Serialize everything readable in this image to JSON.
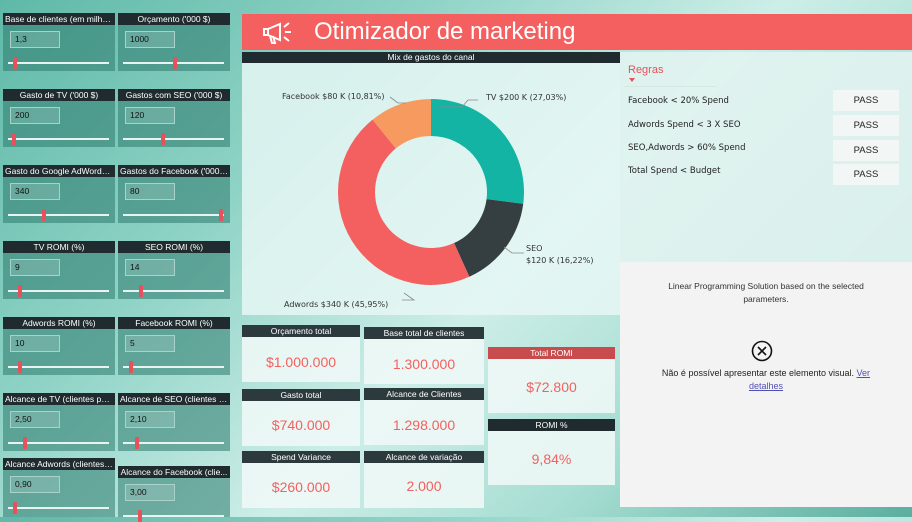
{
  "slicers": [
    {
      "title": "Base de clientes (em milhõ...",
      "value": "1,3"
    },
    {
      "title": "Orçamento ('000 $)",
      "value": "1000"
    },
    {
      "title": "Gasto de TV ('000 $)",
      "value": "200"
    },
    {
      "title": "Gastos com SEO ('000 $)",
      "value": "120"
    },
    {
      "title": "Gasto do Google AdWords...",
      "value": "340"
    },
    {
      "title": "Gastos do Facebook ('000 $)",
      "value": "80"
    },
    {
      "title": "TV ROMI (%)",
      "value": "9"
    },
    {
      "title": "SEO ROMI (%)",
      "value": "14"
    },
    {
      "title": "Adwords ROMI (%)",
      "value": "10"
    },
    {
      "title": "Facebook ROMI (%)",
      "value": "5"
    },
    {
      "title": "Alcance de TV (clientes po...",
      "value": "2,50"
    },
    {
      "title": "Alcance de SEO (clientes p...",
      "value": "2,10"
    },
    {
      "title": "Alcance Adwords (clientes ...",
      "value": "0,90"
    },
    {
      "title": "Alcance do Facebook (clie...",
      "value": "3,00"
    }
  ],
  "header": {
    "title": "Otimizador de marketing",
    "icon": "megaphone-icon"
  },
  "chart_data": {
    "type": "pie",
    "title": "Mix de gastos do canal",
    "slices": [
      {
        "name": "TV",
        "label": "TV $200 K (27,03%)",
        "value": 200,
        "color": "#14b4a4"
      },
      {
        "name": "SEO",
        "label_line1": "SEO",
        "label_line2": "$120 K (16,22%)",
        "value": 120,
        "color": "#353f42"
      },
      {
        "name": "Adwords",
        "label": "Adwords $340 K (45,95%)",
        "value": 340,
        "color": "#f4605f"
      },
      {
        "name": "Facebook",
        "label": "Facebook $80 K (10,81%)",
        "value": 80,
        "color": "#f79a60"
      }
    ]
  },
  "rules": {
    "title": "Regras",
    "items": [
      {
        "label": "Facebook < 20% Spend",
        "status": "PASS"
      },
      {
        "label": "Adwords Spend < 3 X SEO",
        "status": "PASS"
      },
      {
        "label": "SEO,Adwords > 60% Spend",
        "status": "PASS"
      },
      {
        "label": "Total Spend < Budget",
        "status": "PASS"
      }
    ]
  },
  "error_visual": {
    "top_text": "Linear Programming Solution based on the selected parameters.",
    "message": "Não é possível apresentar este elemento visual.",
    "link": "Ver detalhes",
    "icon": "close-circle-icon"
  },
  "cards": {
    "budget": {
      "label": "Orçamento total",
      "value": "$1.000.000"
    },
    "customers": {
      "label": "Base total de clientes",
      "value": "1.300.000"
    },
    "spent": {
      "label": "Gasto total",
      "value": "$740.000"
    },
    "reach": {
      "label": "Alcance de Clientes",
      "value": "1.298.000"
    },
    "variance": {
      "label": "Spend Variance",
      "value": "$260.000"
    },
    "reach_var": {
      "label": "Alcance de variação",
      "value": "2.000"
    },
    "romi": {
      "label": "Total ROMI",
      "value": "$72.800"
    },
    "romi_pct": {
      "label": "ROMI %",
      "value": "9,84%"
    }
  },
  "colors": {
    "accent": "#f4605f",
    "header_dark": "#1f2b2e",
    "thumb": "#e8505b"
  }
}
